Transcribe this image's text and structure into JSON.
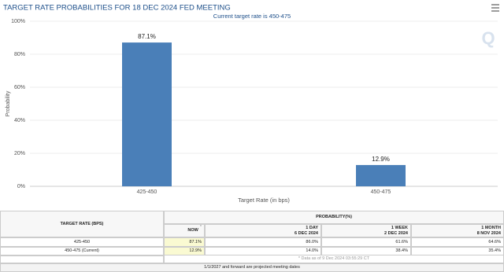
{
  "header": {
    "title": "TARGET RATE PROBABILITIES FOR 18 DEC 2024 FED MEETING"
  },
  "chart_data": {
    "type": "bar",
    "title": "Current target rate is 450-475",
    "categories": [
      "425-450",
      "450-475"
    ],
    "values": [
      87.1,
      12.9
    ],
    "value_labels": [
      "87.1%",
      "12.9%"
    ],
    "color": "#4a7fb8",
    "xlabel": "Target Rate (in bps)",
    "ylabel": "Probability",
    "ylim": [
      0,
      100
    ],
    "yticks": [
      {
        "value": 0,
        "label": "0%"
      },
      {
        "value": 20,
        "label": "20%"
      },
      {
        "value": 40,
        "label": "40%"
      },
      {
        "value": 60,
        "label": "60%"
      },
      {
        "value": 80,
        "label": "80%"
      },
      {
        "value": 100,
        "label": "100%"
      }
    ],
    "grid": true
  },
  "table": {
    "header": [
      "TARGET RATE (BPS)",
      "PROBABILITY(%)"
    ],
    "columns": [
      {
        "label": "NOW",
        "mark": "*"
      },
      {
        "label": "1 DAY",
        "date": "6 DEC 2024"
      },
      {
        "label": "1 WEEK",
        "date": "2 DEC 2024"
      },
      {
        "label": "1 MONTH",
        "date": "8 NOV 2024"
      }
    ],
    "rows": [
      [
        "425-450",
        "87.1%",
        "86.0%",
        "61.6%",
        "64.6%"
      ],
      [
        "450-475 (Current)",
        "12.9%",
        "14.0%",
        "38.4%",
        "35.4%"
      ]
    ],
    "footnote": "* Data as of 9 Dec 2024 03:55:29 CT",
    "footer": "1/1/2027 and forward are projected meeting dates"
  }
}
